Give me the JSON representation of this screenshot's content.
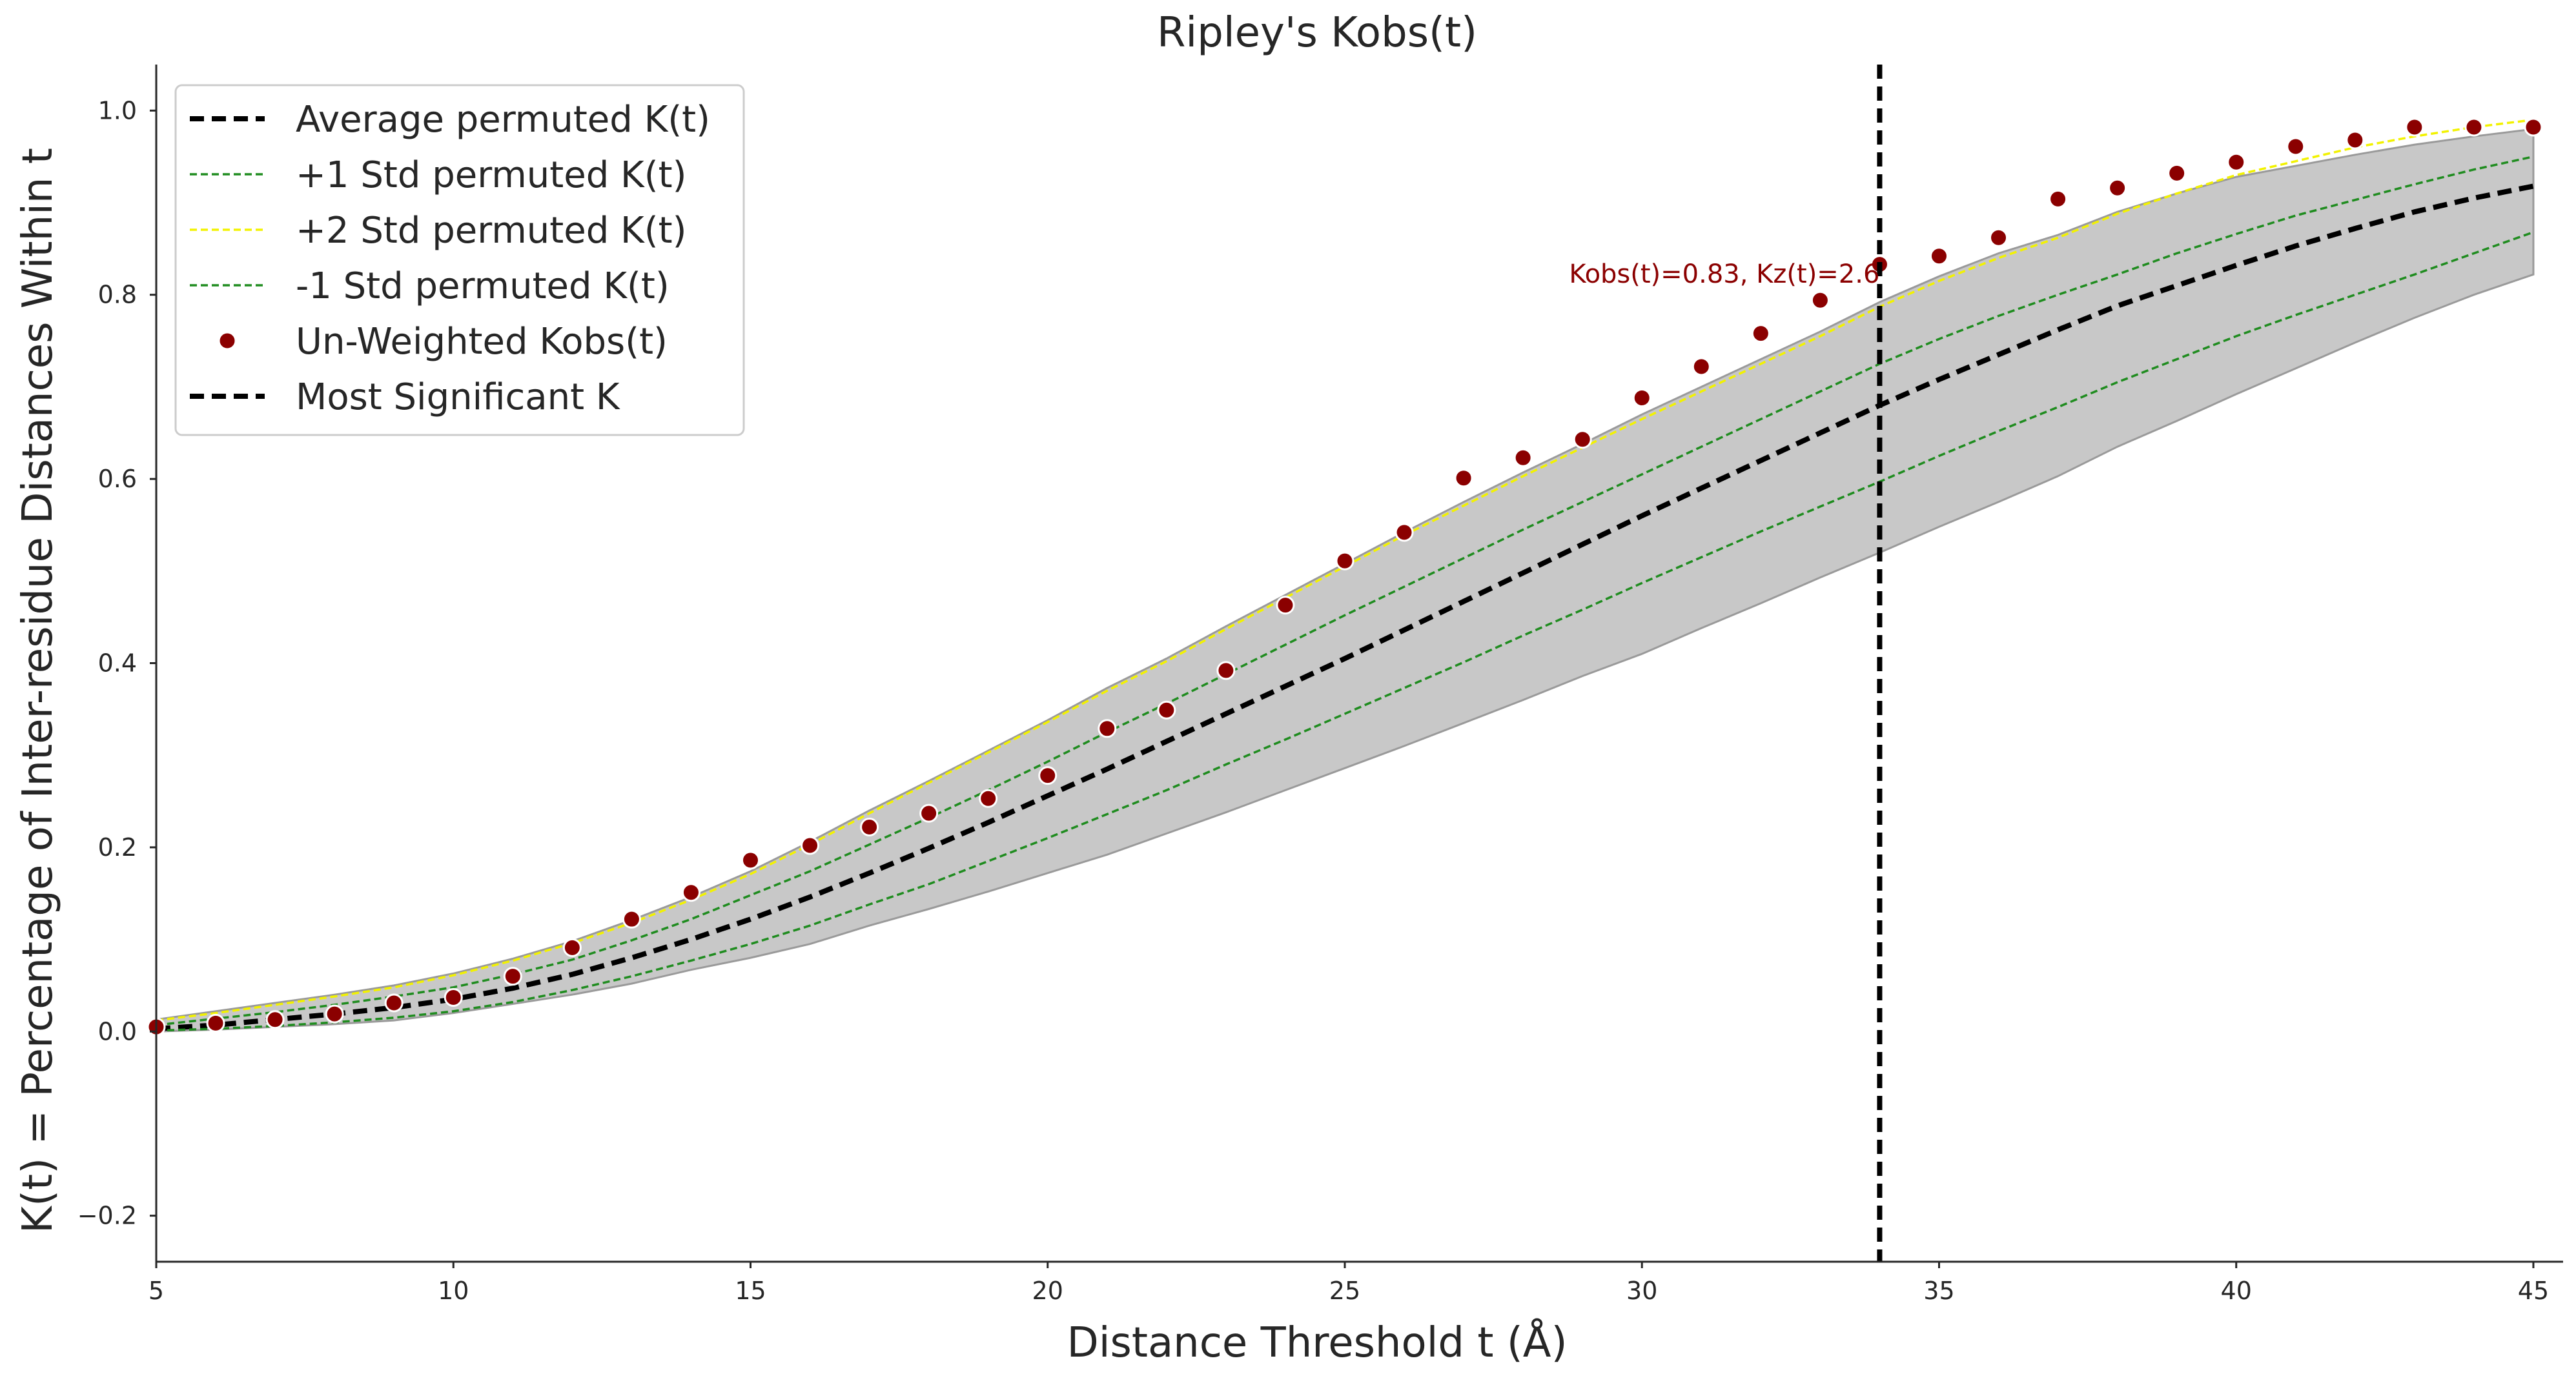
{
  "chart_data": {
    "type": "line",
    "title": "Ripley's Kobs(t)",
    "xlabel": "Distance Threshold t (Å)",
    "ylabel": "K(t) = Percentage of Inter-residue Distances Within t",
    "xlim": [
      5,
      45.5
    ],
    "ylim": [
      -0.25,
      1.05
    ],
    "xticks": [
      5,
      10,
      15,
      20,
      25,
      30,
      35,
      40,
      45
    ],
    "yticks": [
      -0.2,
      0.0,
      0.2,
      0.4,
      0.6,
      0.8,
      1.0
    ],
    "grid": false,
    "legend_position": "upper-left",
    "x": [
      5,
      6,
      7,
      8,
      9,
      10,
      11,
      12,
      13,
      14,
      15,
      16,
      17,
      18,
      19,
      20,
      21,
      22,
      23,
      24,
      25,
      26,
      27,
      28,
      29,
      30,
      31,
      32,
      33,
      34,
      35,
      36,
      37,
      38,
      39,
      40,
      41,
      42,
      43,
      44,
      45
    ],
    "band": {
      "lower": [
        0.0,
        0.002,
        0.005,
        0.008,
        0.012,
        0.02,
        0.03,
        0.04,
        0.052,
        0.067,
        0.08,
        0.095,
        0.115,
        0.133,
        0.152,
        0.172,
        0.192,
        0.215,
        0.238,
        0.262,
        0.286,
        0.31,
        0.335,
        0.36,
        0.386,
        0.41,
        0.438,
        0.465,
        0.493,
        0.52,
        0.548,
        0.575,
        0.603,
        0.635,
        0.663,
        0.692,
        0.72,
        0.748,
        0.775,
        0.8,
        0.822
      ],
      "upper": [
        0.013,
        0.022,
        0.031,
        0.04,
        0.05,
        0.063,
        0.079,
        0.098,
        0.121,
        0.146,
        0.174,
        0.206,
        0.24,
        0.272,
        0.305,
        0.338,
        0.373,
        0.405,
        0.44,
        0.474,
        0.508,
        0.542,
        0.575,
        0.607,
        0.638,
        0.67,
        0.7,
        0.73,
        0.76,
        0.792,
        0.82,
        0.845,
        0.865,
        0.89,
        0.91,
        0.928,
        0.94,
        0.952,
        0.963,
        0.972,
        0.98
      ],
      "color": "#c8c8c8"
    },
    "series": [
      {
        "name": "Average permuted K(t)",
        "style": "dashed",
        "color": "#000000",
        "values": [
          0.003,
          0.007,
          0.013,
          0.019,
          0.026,
          0.035,
          0.047,
          0.062,
          0.08,
          0.1,
          0.122,
          0.146,
          0.172,
          0.199,
          0.227,
          0.256,
          0.285,
          0.315,
          0.345,
          0.375,
          0.405,
          0.436,
          0.467,
          0.498,
          0.529,
          0.56,
          0.59,
          0.62,
          0.65,
          0.68,
          0.708,
          0.735,
          0.762,
          0.788,
          0.81,
          0.832,
          0.853,
          0.872,
          0.89,
          0.905,
          0.918
        ]
      },
      {
        "name": "+1 Std permuted K(t)",
        "style": "dashed",
        "color": "#1f8c1f",
        "values": [
          0.007,
          0.014,
          0.021,
          0.029,
          0.038,
          0.048,
          0.062,
          0.078,
          0.099,
          0.122,
          0.148,
          0.174,
          0.203,
          0.232,
          0.262,
          0.293,
          0.325,
          0.356,
          0.388,
          0.42,
          0.452,
          0.483,
          0.514,
          0.545,
          0.575,
          0.605,
          0.635,
          0.665,
          0.695,
          0.725,
          0.752,
          0.777,
          0.8,
          0.822,
          0.845,
          0.866,
          0.886,
          0.903,
          0.92,
          0.936,
          0.95
        ]
      },
      {
        "name": "+2 Std permuted K(t)",
        "style": "dashed",
        "color": "#f2f200",
        "values": [
          0.012,
          0.02,
          0.029,
          0.038,
          0.048,
          0.061,
          0.077,
          0.096,
          0.118,
          0.143,
          0.171,
          0.203,
          0.237,
          0.27,
          0.303,
          0.336,
          0.37,
          0.402,
          0.437,
          0.471,
          0.505,
          0.539,
          0.571,
          0.603,
          0.634,
          0.665,
          0.695,
          0.725,
          0.755,
          0.787,
          0.815,
          0.84,
          0.862,
          0.888,
          0.91,
          0.93,
          0.945,
          0.96,
          0.972,
          0.982,
          0.99
        ]
      },
      {
        "name": "-1 Std permuted K(t)",
        "style": "dashed",
        "color": "#1f8c1f",
        "values": [
          0.001,
          0.003,
          0.006,
          0.01,
          0.015,
          0.022,
          0.032,
          0.045,
          0.06,
          0.077,
          0.095,
          0.115,
          0.138,
          0.16,
          0.185,
          0.21,
          0.236,
          0.262,
          0.29,
          0.317,
          0.345,
          0.373,
          0.401,
          0.43,
          0.458,
          0.487,
          0.515,
          0.543,
          0.57,
          0.597,
          0.625,
          0.652,
          0.678,
          0.705,
          0.73,
          0.755,
          0.778,
          0.8,
          0.822,
          0.845,
          0.868
        ]
      },
      {
        "name": "Un-Weighted Kobs(t)",
        "style": "points",
        "color": "#8b0000",
        "values": [
          0.005,
          0.009,
          0.013,
          0.019,
          0.031,
          0.037,
          0.06,
          0.091,
          0.122,
          0.151,
          0.186,
          0.202,
          0.222,
          0.237,
          0.253,
          0.278,
          0.329,
          0.349,
          0.392,
          0.463,
          0.511,
          0.542,
          0.601,
          0.623,
          0.643,
          0.688,
          0.722,
          0.758,
          0.794,
          0.833,
          0.842,
          0.862,
          0.904,
          0.916,
          0.932,
          0.944,
          0.961,
          0.968,
          0.982,
          0.982,
          0.982
        ]
      }
    ],
    "vline": {
      "name": "Most Significant K",
      "x": 34,
      "style": "dashed",
      "color": "#000000"
    },
    "annotation": {
      "text": "Kobs(t)=0.83, Kz(t)=2.6",
      "x": 34,
      "y": 0.83,
      "color": "#8b0000"
    },
    "legend": [
      "Average permuted K(t)",
      "+1 Std permuted K(t)",
      "+2 Std permuted K(t)",
      "-1 Std permuted K(t)",
      "Un-Weighted Kobs(t)",
      "Most Significant K"
    ]
  }
}
